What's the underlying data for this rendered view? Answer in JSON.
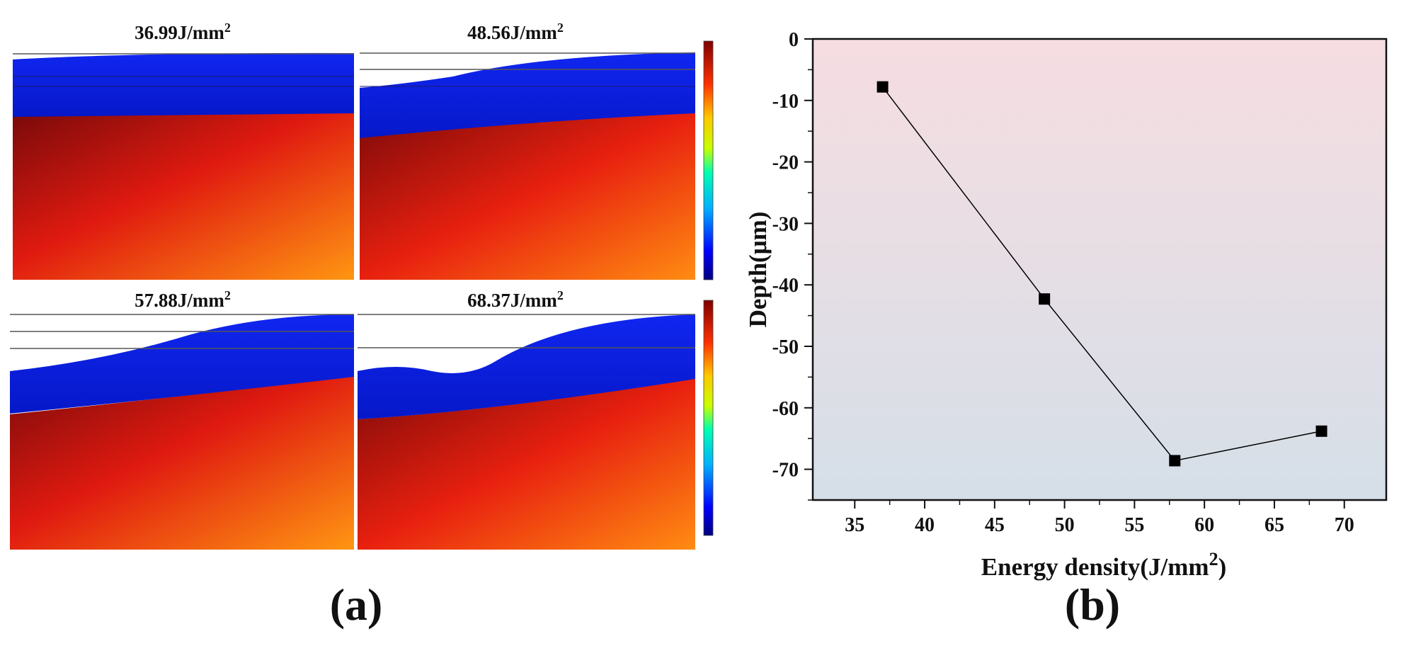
{
  "panel_a": {
    "label": "(a)",
    "simulations": [
      {
        "energy": "36.99J/mm",
        "sup": "2"
      },
      {
        "energy": "48.56J/mm",
        "sup": "2"
      },
      {
        "energy": "57.88J/mm",
        "sup": "2"
      },
      {
        "energy": "68.37J/mm",
        "sup": "2"
      }
    ],
    "colors": {
      "blue_layer": "#0a1fe0",
      "molten_dark": "#8a0b0b",
      "molten_mid": "#e81a10",
      "molten_bright": "#ff8a10"
    }
  },
  "panel_b": {
    "label": "(b)"
  },
  "chart_data": {
    "type": "line",
    "title": "",
    "xlabel": "Energy density(J/mm",
    "xlabel_sup": "2",
    "xlabel_end": ")",
    "ylabel": "Depth(μm)",
    "x": [
      36.99,
      48.56,
      57.88,
      68.37
    ],
    "y": [
      -7.8,
      -42.3,
      -68.6,
      -63.8
    ],
    "xlim": [
      32,
      73
    ],
    "ylim": [
      -75,
      0
    ],
    "xticks": [
      35,
      40,
      45,
      50,
      55,
      60,
      65,
      70
    ],
    "yticks": [
      0,
      -10,
      -20,
      -30,
      -40,
      -50,
      -60,
      -70
    ],
    "grid": false,
    "background_gradient": [
      "#f5dde0",
      "#d6e0e8"
    ],
    "marker": "square",
    "line_color": "#000000"
  }
}
